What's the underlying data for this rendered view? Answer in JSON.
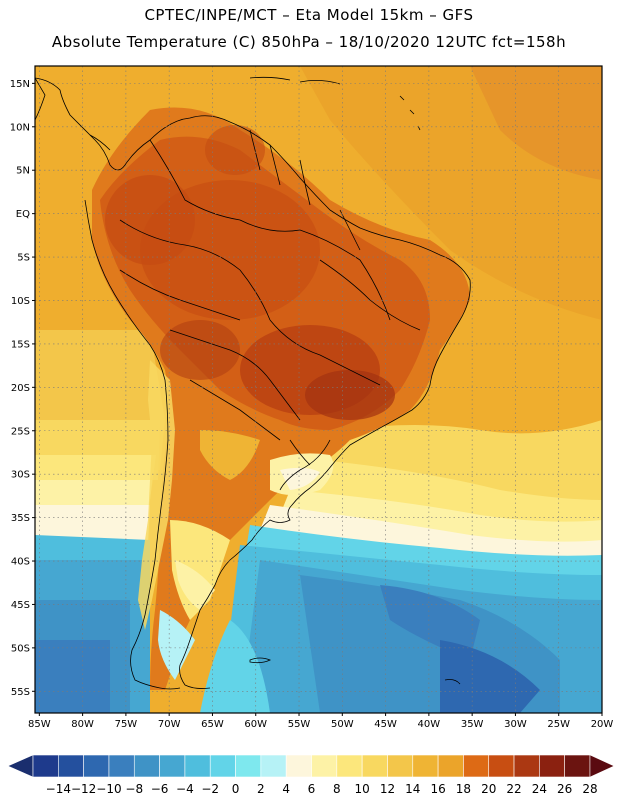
{
  "header": {
    "line1": "CPTEC/INPE/MCT –  Eta Model 15km – GFS",
    "line2": "Absolute Temperature (C) 850hPa – 18/10/2020 12UTC fct=158h"
  },
  "axes": {
    "lat_labels": [
      "15N",
      "10N",
      "5N",
      "EQ",
      "5S",
      "10S",
      "15S",
      "20S",
      "25S",
      "30S",
      "35S",
      "40S",
      "45S",
      "50S",
      "55S"
    ],
    "lat_values": [
      15,
      10,
      5,
      0,
      -5,
      -10,
      -15,
      -20,
      -25,
      -30,
      -35,
      -40,
      -45,
      -50,
      -55
    ],
    "lon_labels": [
      "85W",
      "80W",
      "75W",
      "70W",
      "65W",
      "60W",
      "55W",
      "50W",
      "45W",
      "40W",
      "35W",
      "30W",
      "25W",
      "20W"
    ],
    "lon_values": [
      -85,
      -80,
      -75,
      -70,
      -65,
      -60,
      -55,
      -50,
      -45,
      -40,
      -35,
      -30,
      -25,
      -20
    ],
    "lat_range": [
      -57.5,
      17
    ],
    "lon_range": [
      -85.5,
      -20
    ]
  },
  "colorbar": {
    "ticks": [
      "-14",
      "-12",
      "-10",
      "-8",
      "-6",
      "-4",
      "-2",
      "0",
      "2",
      "4",
      "6",
      "8",
      "10",
      "12",
      "14",
      "16",
      "18",
      "20",
      "22",
      "24",
      "26",
      "28"
    ],
    "colors": [
      "#1e3a8c",
      "#24509e",
      "#2e68b0",
      "#3a7fbe",
      "#3f93c6",
      "#46a7d1",
      "#4fbedd",
      "#62d4e8",
      "#7ee8ee",
      "#b6f2f6",
      "#fdf6dc",
      "#fdf2a6",
      "#fce77c",
      "#f8d860",
      "#f3c64a",
      "#efb434",
      "#eba42a",
      "#dd6a15",
      "#c84e12",
      "#ab3812",
      "#8b2110",
      "#6b1410"
    ],
    "under_color": "#1a2e6e",
    "over_color": "#5a0a10"
  }
}
